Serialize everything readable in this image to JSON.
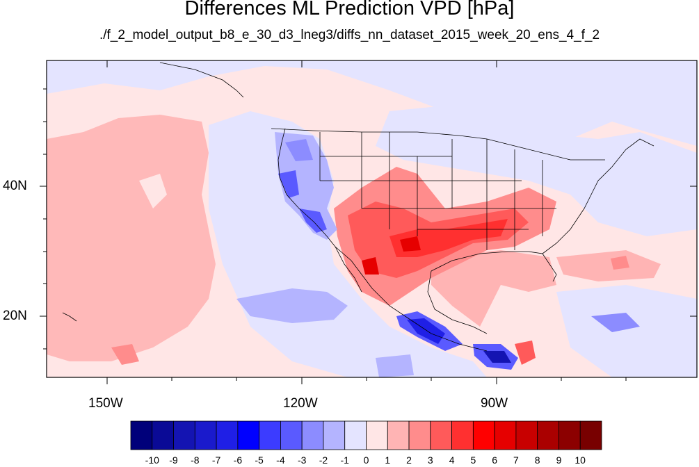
{
  "title": "Differences ML Prediction VPD [hPa]",
  "subtitle": "./f_2_model_output_b8_e_30_d3_lneg3/diffs_nn_dataset_2015_week_20_ens_4_f_2",
  "axes": {
    "lon_ticks": [
      "150W",
      "120W",
      "90W"
    ],
    "lat_ticks": [
      "40N",
      "20N"
    ]
  },
  "colorbar": {
    "labels": [
      "-10",
      "-9",
      "-8",
      "-7",
      "-6",
      "-5",
      "-4",
      "-3",
      "-2",
      "-1",
      "0",
      "1",
      "2",
      "3",
      "4",
      "5",
      "6",
      "7",
      "8",
      "9",
      "10"
    ],
    "colors": [
      "#00007a",
      "#0a0a96",
      "#1414b2",
      "#1a1acc",
      "#1f1fe6",
      "#0000ff",
      "#3c3cff",
      "#5a5aff",
      "#8c8cff",
      "#b4b4ff",
      "#e4e4ff",
      "#ffe6e6",
      "#ffb4b4",
      "#ff8c8c",
      "#ff5a5a",
      "#ff3030",
      "#ff0000",
      "#e60000",
      "#c80000",
      "#aa0000",
      "#8c0000",
      "#780000"
    ]
  }
}
